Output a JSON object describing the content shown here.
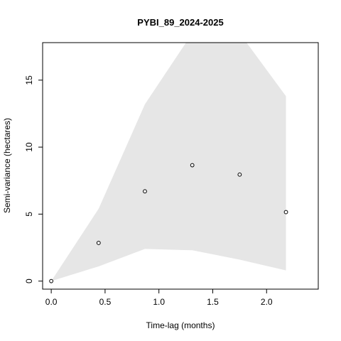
{
  "chart_data": {
    "type": "scatter",
    "title": "PYBI_89_2024-2025",
    "xlabel": "Time-lag (months)",
    "ylabel": "Semi-variance (hectares)",
    "xlim": [
      -0.08,
      2.48
    ],
    "ylim": [
      -0.6,
      17.8
    ],
    "xticks": [
      0.0,
      0.5,
      1.0,
      1.5,
      2.0
    ],
    "xtick_labels": [
      "0.0",
      "0.5",
      "1.0",
      "1.5",
      "2.0"
    ],
    "yticks": [
      0,
      5,
      10,
      15
    ],
    "ytick_labels": [
      "0",
      "5",
      "10",
      "15"
    ],
    "points": [
      {
        "x": 0.0,
        "y": 0.0
      },
      {
        "x": 0.44,
        "y": 2.85
      },
      {
        "x": 0.87,
        "y": 6.7
      },
      {
        "x": 1.31,
        "y": 8.65
      },
      {
        "x": 1.75,
        "y": 7.95
      },
      {
        "x": 2.18,
        "y": 5.15
      }
    ],
    "confidence_band": {
      "x": [
        0.0,
        0.44,
        0.87,
        1.31,
        1.75,
        2.18
      ],
      "upper": [
        0.0,
        5.4,
        13.2,
        18.5,
        18.5,
        13.8
      ],
      "lower": [
        0.0,
        1.1,
        2.4,
        2.3,
        1.6,
        0.8
      ]
    },
    "band_color": "#e6e6e6",
    "point_color": "#000000",
    "grid": false,
    "legend": "none"
  }
}
